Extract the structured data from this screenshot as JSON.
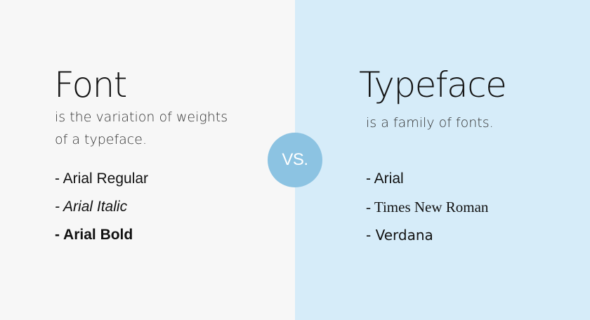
{
  "font_panel": {
    "heading": "Font",
    "description_lines": [
      "is the variation of weights",
      "of a typeface."
    ],
    "examples": [
      "- Arial Regular",
      "- Arial Italic",
      "- Arial Bold"
    ]
  },
  "vs_badge": {
    "label": "VS."
  },
  "typeface_panel": {
    "heading": "Typeface",
    "description_lines": [
      "is a family of fonts."
    ],
    "examples": [
      "- Arial",
      "- Times New Roman",
      "- Verdana"
    ]
  },
  "colors": {
    "left_background": "#f7f7f7",
    "right_background": "#d6ecf9",
    "badge": "#8cc3e2"
  }
}
